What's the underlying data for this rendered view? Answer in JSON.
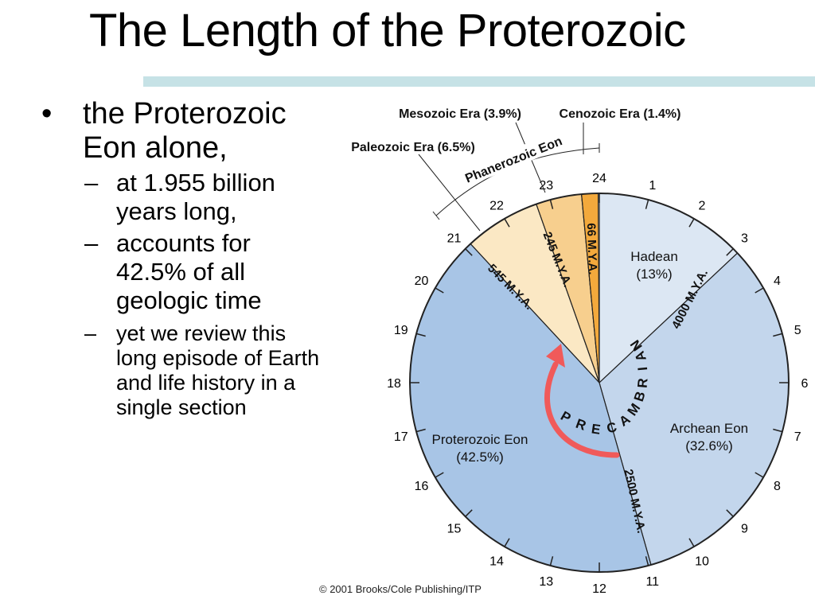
{
  "slide": {
    "title": "The Length of the Proterozoic",
    "bullet_marker": "•",
    "dash_marker": "–",
    "bullet": "the Proterozoic Eon alone,",
    "sub_bullets": [
      "at 1.955 billion years long,",
      "accounts for 42.5% of all geologic time",
      "yet we review this long episode of Earth and life history in a single section"
    ]
  },
  "credit": "© 2001 Brooks/Cole Publishing/ITP",
  "chart_data": {
    "type": "pie",
    "clock_hours": [
      "1",
      "2",
      "3",
      "4",
      "5",
      "6",
      "7",
      "8",
      "9",
      "10",
      "11",
      "12",
      "13",
      "14",
      "15",
      "16",
      "17",
      "18",
      "19",
      "20",
      "21",
      "22",
      "23",
      "24"
    ],
    "slices": [
      {
        "name": "Hadean",
        "percent": 13,
        "label": "(13%)",
        "color": "#dce7f3"
      },
      {
        "name": "Archean Eon",
        "percent": 32.6,
        "label": "(32.6%)",
        "color": "#c3d6ec"
      },
      {
        "name": "Proterozoic Eon",
        "percent": 42.5,
        "label": "(42.5%)",
        "color": "#a8c5e6"
      },
      {
        "name": "Paleozoic Era",
        "percent": 6.5,
        "label": "(6.5%)",
        "color": "#fbe8c4"
      },
      {
        "name": "Mesozoic Era",
        "percent": 3.9,
        "label": "(3.9%)",
        "color": "#f7cf8e"
      },
      {
        "name": "Cenozoic Era",
        "percent": 1.4,
        "label": "(1.4%)",
        "color": "#f3a93c"
      }
    ],
    "boundaries": [
      "4000 M.Y.A.",
      "2500 M.Y.A.",
      "545 M.Y.A.",
      "245 M.Y.A.",
      "66 M.Y.A."
    ],
    "external_labels": [
      "Mesozoic Era (3.9%)",
      "Cenozoic Era (1.4%)",
      "Paleozoic Era (6.5%)"
    ],
    "phanerozoic_label": "Phanerozoic Eon",
    "precambrian_label": "PRECAMBRIAN",
    "arrow_color": "#f05a5a"
  }
}
